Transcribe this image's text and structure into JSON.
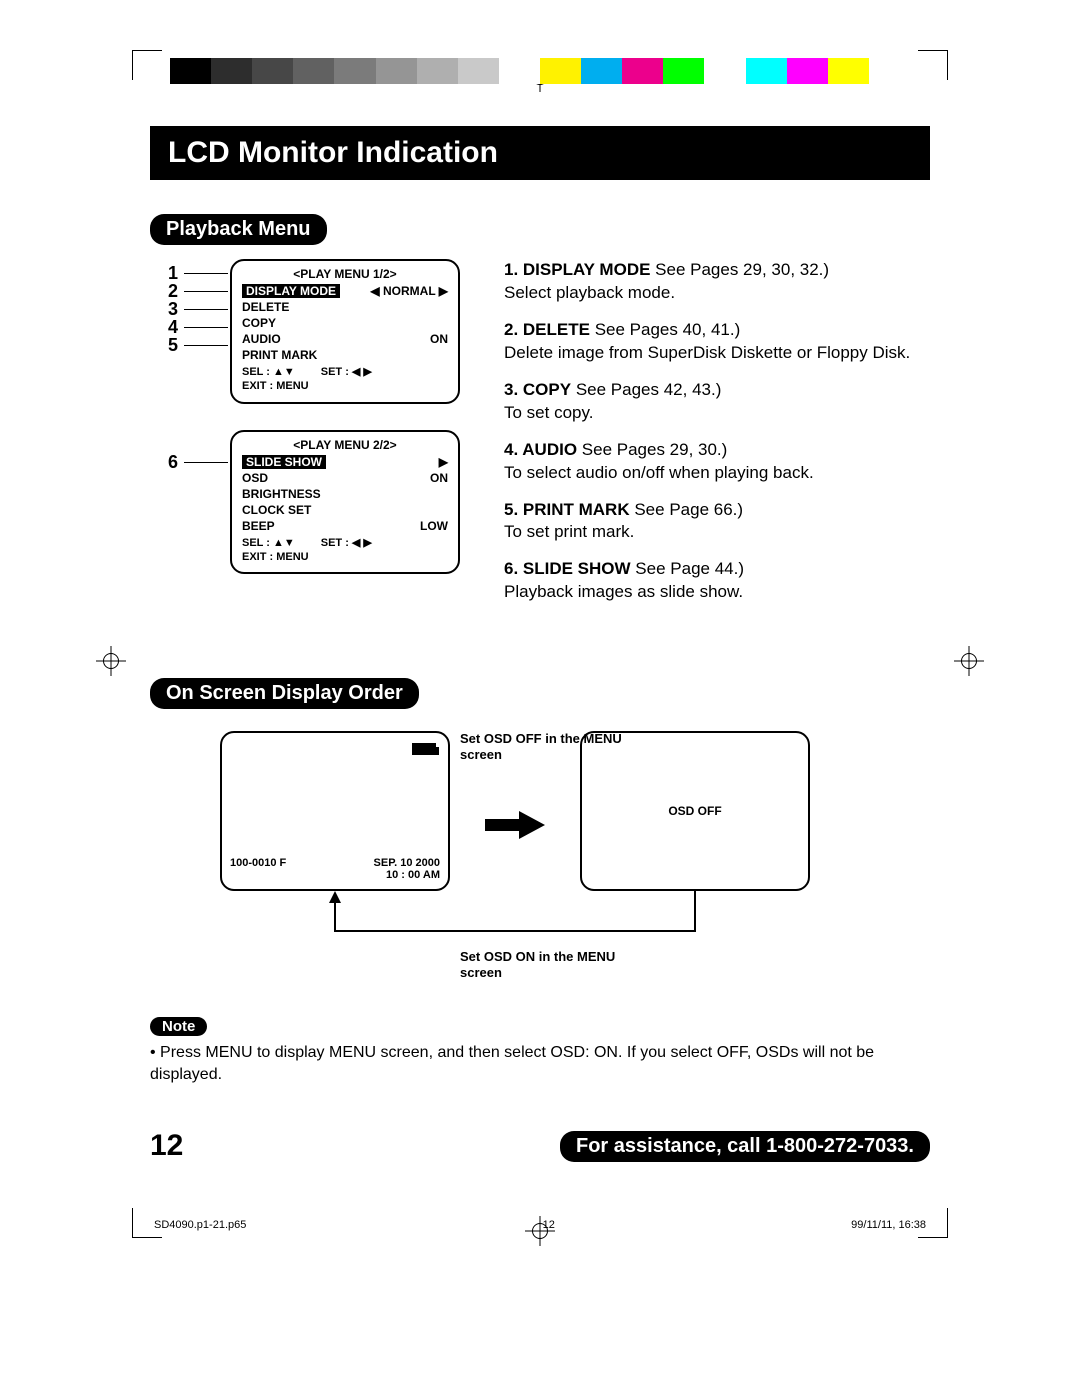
{
  "colorbar": [
    "#000000",
    "#2d2d2d",
    "#474747",
    "#616161",
    "#7b7b7b",
    "#959595",
    "#afafaf",
    "#c9c9c9",
    "#ffffff",
    "#fff200",
    "#00aeef",
    "#ec008c",
    "#00ff00",
    "#ffffff",
    "#00ffff",
    "#ff00ff",
    "#ffff00",
    "#ffffff"
  ],
  "title": "LCD Monitor Indication",
  "section_playback": "Playback Menu",
  "menu1": {
    "title": "<PLAY MENU 1/2>",
    "rows": [
      {
        "label": "DISPLAY MODE",
        "val": "◀ NORMAL ▶",
        "hi": true
      },
      {
        "label": "DELETE",
        "val": ""
      },
      {
        "label": "COPY",
        "val": ""
      },
      {
        "label": "AUDIO",
        "val": "ON"
      },
      {
        "label": "PRINT MARK",
        "val": ""
      }
    ],
    "foot_sel": "SEL    : ▲▼",
    "foot_set": "SET   : ◀ ▶",
    "foot_exit": "EXIT  : MENU",
    "callouts": [
      "1",
      "2",
      "3",
      "4",
      "5"
    ]
  },
  "menu2": {
    "title": "<PLAY MENU 2/2>",
    "rows": [
      {
        "label": "SLIDE SHOW",
        "val": "▶",
        "hi": true
      },
      {
        "label": "OSD",
        "val": "ON"
      },
      {
        "label": "BRIGHTNESS",
        "val": ""
      },
      {
        "label": "CLOCK SET",
        "val": ""
      },
      {
        "label": "BEEP",
        "val": "LOW"
      }
    ],
    "foot_sel": "SEL    : ▲▼",
    "foot_set": "SET   : ◀ ▶",
    "foot_exit": "EXIT  : MENU",
    "callouts": [
      "6"
    ]
  },
  "descriptions": [
    {
      "lead": "1. DISPLAY MODE",
      "ref": " See Pages 29, 30, 32.)",
      "body": "Select playback mode."
    },
    {
      "lead": "2. DELETE",
      "ref": " See Pages 40, 41.)",
      "body": "Delete image from SuperDisk Diskette or Floppy Disk."
    },
    {
      "lead": "3. COPY",
      "ref": " See Pages 42, 43.)",
      "body": "To set copy."
    },
    {
      "lead": "4. AUDIO",
      "ref": " See Pages 29, 30.)",
      "body": "To select audio on/off when playing back."
    },
    {
      "lead": "5. PRINT MARK",
      "ref": " See Page 66.)",
      "body": "To set print mark."
    },
    {
      "lead": "6. SLIDE SHOW",
      "ref": " See Page 44.)",
      "body": "Playback images as slide show."
    }
  ],
  "section_osd": "On Screen Display Order",
  "osd": {
    "id": "100-0010 F",
    "date1": "SEP. 10  2000",
    "date2": "10 : 00 AM",
    "caption_top": "Set OSD OFF in the MENU screen",
    "caption_bottom": "Set OSD ON in the MENU screen",
    "right": "OSD OFF"
  },
  "note_label": "Note",
  "note_text": "• Press MENU to display MENU screen, and then select OSD: ON. If you select OFF, OSDs will not be displayed.",
  "page_number": "12",
  "assist": "For assistance, call 1-800-272-7033.",
  "meta_file": "SD4090.p1-21.p65",
  "meta_page": "12",
  "meta_date": "99/11/11, 16:38"
}
